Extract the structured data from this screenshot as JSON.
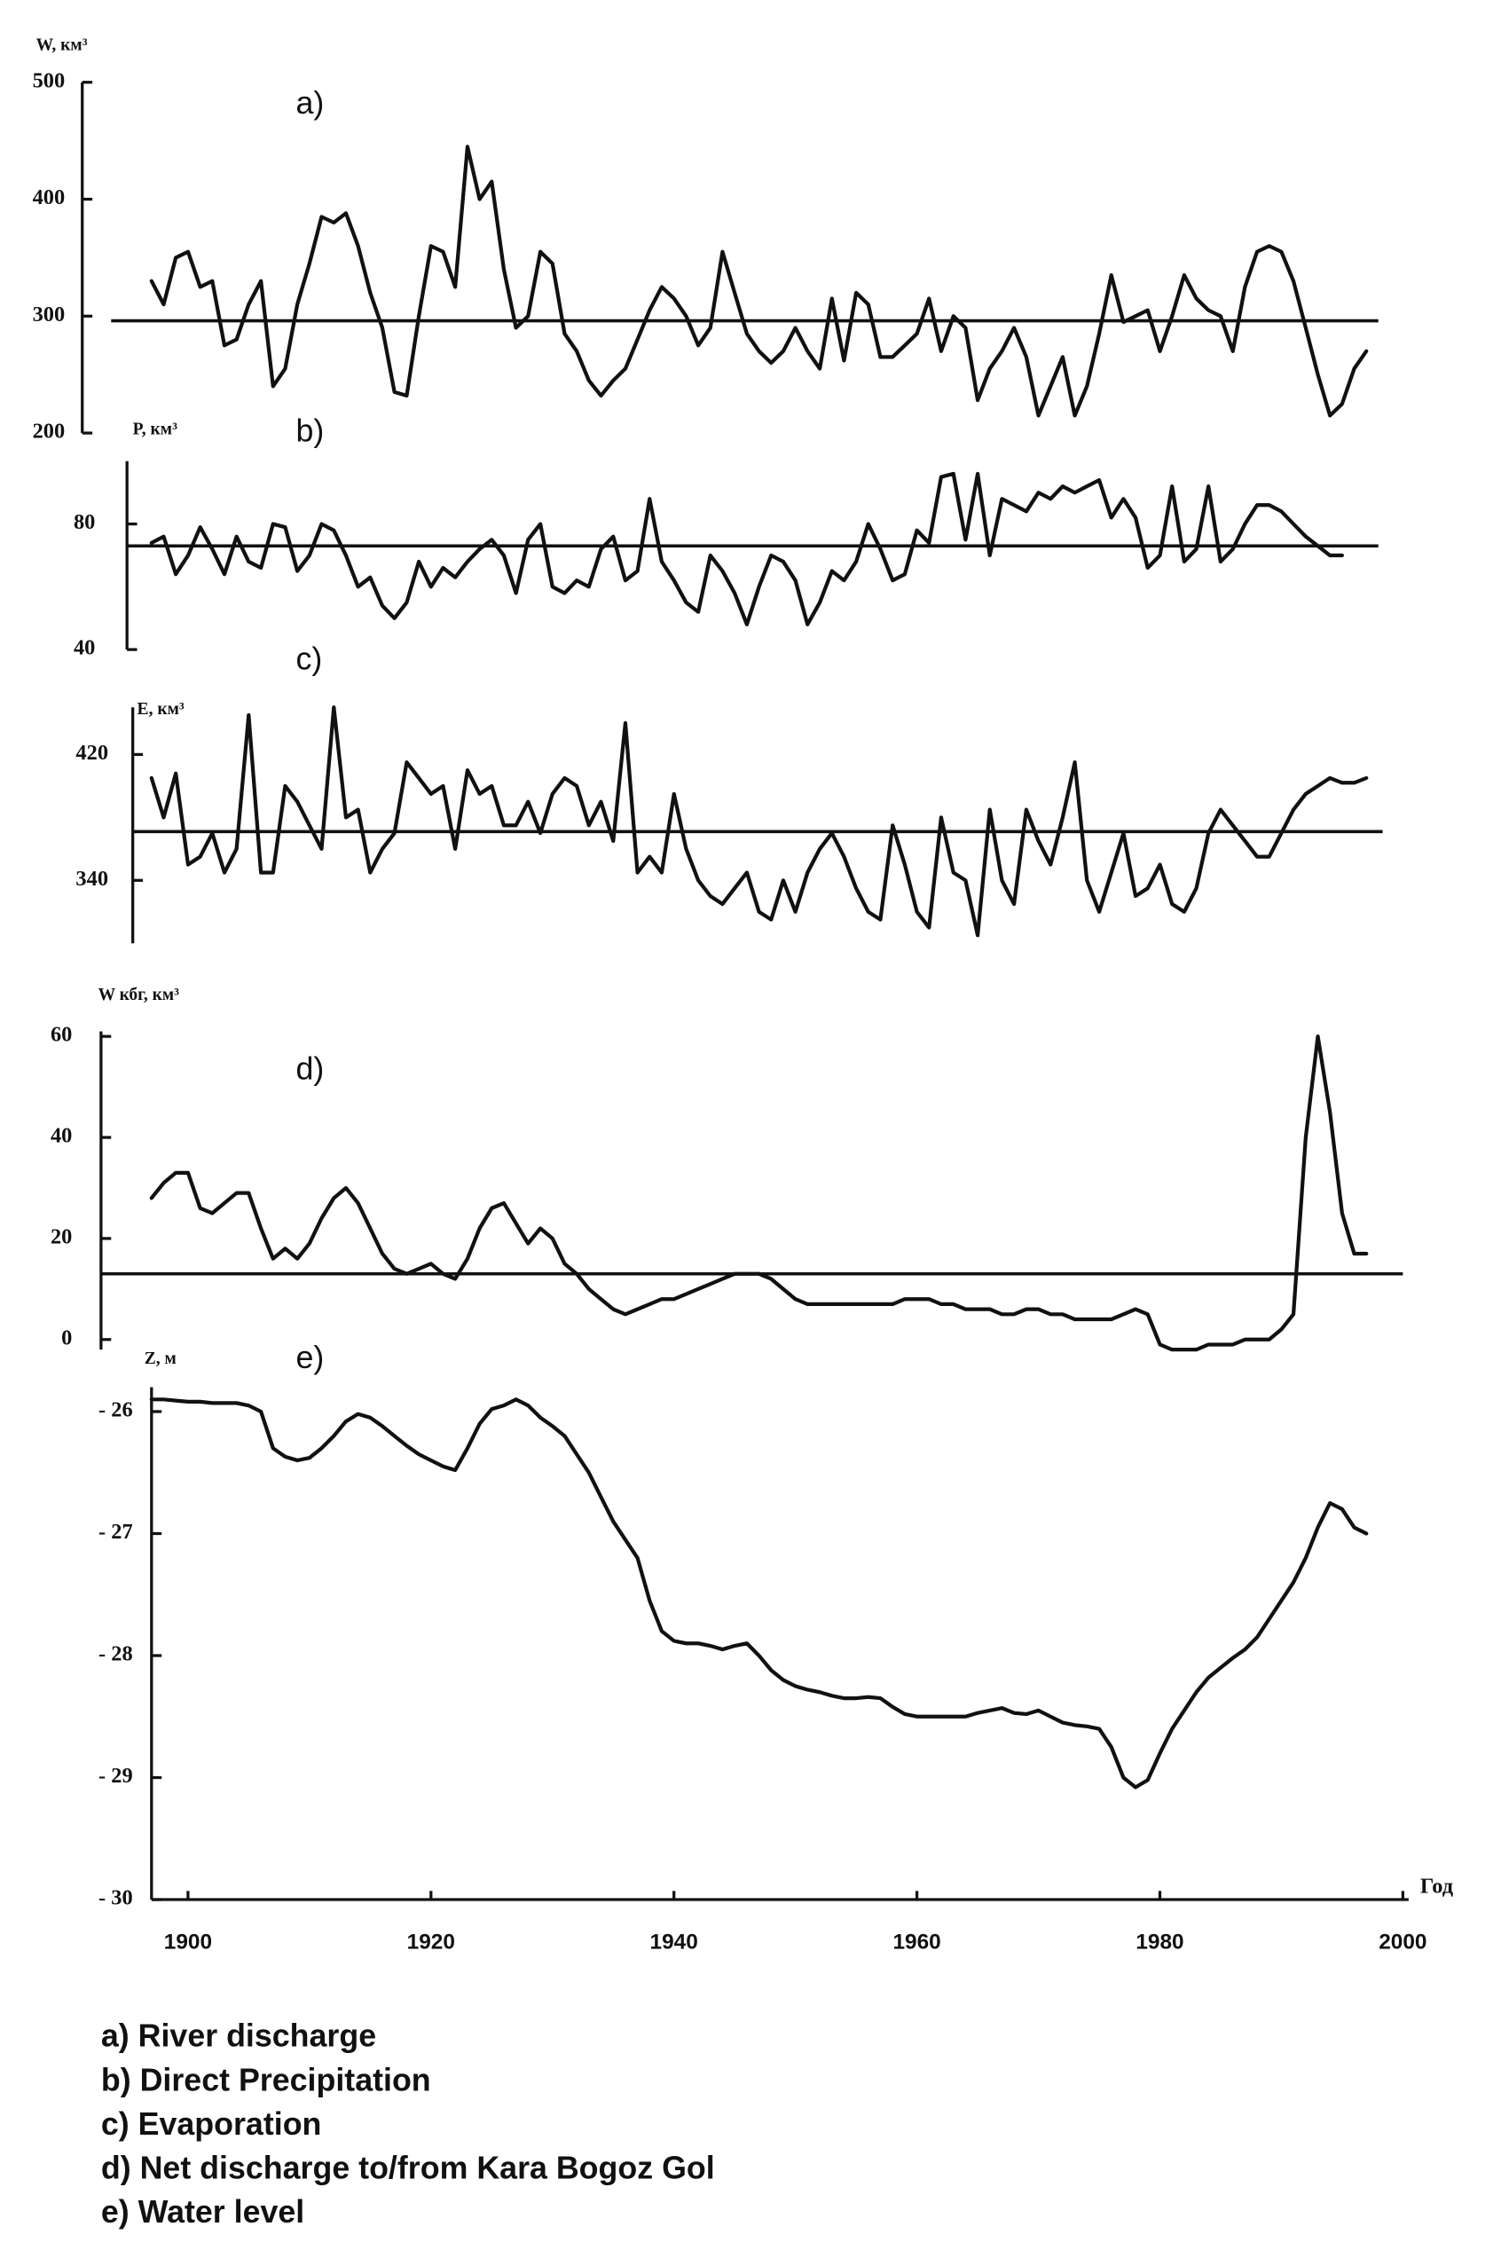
{
  "chart_data": [
    {
      "type": "line",
      "label": "a)",
      "ylabel": "W, км³",
      "xlim": [
        1897,
        2000
      ],
      "ylim": [
        200,
        500
      ],
      "yticks": [
        200,
        300,
        400,
        500
      ],
      "reference_line": 296,
      "color": "#111111",
      "x": [
        1897,
        1898,
        1899,
        1900,
        1901,
        1902,
        1903,
        1904,
        1905,
        1906,
        1907,
        1908,
        1909,
        1910,
        1911,
        1912,
        1913,
        1914,
        1915,
        1916,
        1917,
        1918,
        1919,
        1920,
        1921,
        1922,
        1923,
        1924,
        1925,
        1926,
        1927,
        1928,
        1929,
        1930,
        1931,
        1932,
        1933,
        1934,
        1935,
        1936,
        1937,
        1938,
        1939,
        1940,
        1941,
        1942,
        1943,
        1944,
        1945,
        1946,
        1947,
        1948,
        1949,
        1950,
        1951,
        1952,
        1953,
        1954,
        1955,
        1956,
        1957,
        1958,
        1959,
        1960,
        1961,
        1962,
        1963,
        1964,
        1965,
        1966,
        1967,
        1968,
        1969,
        1970,
        1971,
        1972,
        1973,
        1974,
        1975,
        1976,
        1977,
        1978,
        1979,
        1980,
        1981,
        1982,
        1983,
        1984,
        1985,
        1986,
        1987,
        1988,
        1989,
        1990,
        1991,
        1992,
        1993,
        1994,
        1995,
        1996,
        1997
      ],
      "values": [
        330,
        310,
        350,
        355,
        325,
        330,
        275,
        280,
        310,
        330,
        240,
        255,
        310,
        345,
        385,
        380,
        388,
        360,
        320,
        290,
        235,
        232,
        300,
        360,
        355,
        325,
        445,
        400,
        415,
        340,
        290,
        300,
        355,
        345,
        285,
        270,
        245,
        232,
        245,
        255,
        280,
        305,
        325,
        315,
        300,
        275,
        290,
        355,
        320,
        285,
        270,
        260,
        270,
        290,
        270,
        255,
        315,
        262,
        320,
        310,
        265,
        265,
        275,
        285,
        315,
        270,
        300,
        290,
        228,
        255,
        270,
        290,
        265,
        215,
        240,
        265,
        215,
        240,
        285,
        335,
        295,
        300,
        305,
        270,
        300,
        335,
        315,
        305,
        300,
        270,
        325,
        355,
        360,
        355,
        330,
        290,
        250,
        215,
        225,
        255,
        270
      ]
    },
    {
      "type": "line",
      "label": "b)",
      "ylabel": "P, км³",
      "xlim": [
        1897,
        2000
      ],
      "ylim": [
        40,
        100
      ],
      "yticks": [
        40,
        80
      ],
      "reference_line": 73,
      "color": "#111111",
      "x": [
        1897,
        1898,
        1899,
        1900,
        1901,
        1902,
        1903,
        1904,
        1905,
        1906,
        1907,
        1908,
        1909,
        1910,
        1911,
        1912,
        1913,
        1914,
        1915,
        1916,
        1917,
        1918,
        1919,
        1920,
        1921,
        1922,
        1923,
        1924,
        1925,
        1926,
        1927,
        1928,
        1929,
        1930,
        1931,
        1932,
        1933,
        1934,
        1935,
        1936,
        1937,
        1938,
        1939,
        1940,
        1941,
        1942,
        1943,
        1944,
        1945,
        1946,
        1947,
        1948,
        1949,
        1950,
        1951,
        1952,
        1953,
        1954,
        1955,
        1956,
        1957,
        1958,
        1959,
        1960,
        1961,
        1962,
        1963,
        1964,
        1965,
        1966,
        1967,
        1968,
        1969,
        1970,
        1971,
        1972,
        1973,
        1974,
        1975,
        1976,
        1977,
        1978,
        1979,
        1980,
        1981,
        1982,
        1983,
        1984,
        1985,
        1986,
        1987,
        1988,
        1989,
        1990,
        1991,
        1992,
        1993,
        1994,
        1995
      ],
      "values": [
        74,
        76,
        64,
        70,
        79,
        72,
        64,
        76,
        68,
        66,
        80,
        79,
        65,
        70,
        80,
        78,
        70,
        60,
        63,
        54,
        50,
        55,
        68,
        60,
        66,
        63,
        68,
        72,
        75,
        70,
        58,
        75,
        80,
        60,
        58,
        62,
        60,
        72,
        76,
        62,
        65,
        88,
        68,
        62,
        55,
        52,
        70,
        65,
        58,
        48,
        60,
        70,
        68,
        62,
        48,
        55,
        65,
        62,
        68,
        80,
        72,
        62,
        64,
        78,
        74,
        95,
        96,
        75,
        96,
        70,
        88,
        86,
        84,
        90,
        88,
        92,
        90,
        92,
        94,
        82,
        88,
        82,
        66,
        70,
        92,
        68,
        72,
        92,
        68,
        72,
        80,
        86,
        86,
        84,
        80,
        76,
        73,
        70,
        70
      ]
    },
    {
      "type": "line",
      "label": "c)",
      "ylabel": "E, км³",
      "xlim": [
        1897,
        2000
      ],
      "ylim": [
        300,
        450
      ],
      "yticks": [
        340,
        420
      ],
      "reference_line": 371,
      "color": "#111111",
      "x": [
        1897,
        1898,
        1899,
        1900,
        1901,
        1902,
        1903,
        1904,
        1905,
        1906,
        1907,
        1908,
        1909,
        1910,
        1911,
        1912,
        1913,
        1914,
        1915,
        1916,
        1917,
        1918,
        1919,
        1920,
        1921,
        1922,
        1923,
        1924,
        1925,
        1926,
        1927,
        1928,
        1929,
        1930,
        1931,
        1932,
        1933,
        1934,
        1935,
        1936,
        1937,
        1938,
        1939,
        1940,
        1941,
        1942,
        1943,
        1944,
        1945,
        1946,
        1947,
        1948,
        1949,
        1950,
        1951,
        1952,
        1953,
        1954,
        1955,
        1956,
        1957,
        1958,
        1959,
        1960,
        1961,
        1962,
        1963,
        1964,
        1965,
        1966,
        1967,
        1968,
        1969,
        1970,
        1971,
        1972,
        1973,
        1974,
        1975,
        1976,
        1977,
        1978,
        1979,
        1980,
        1981,
        1982,
        1983,
        1984,
        1985,
        1986,
        1987,
        1988,
        1989,
        1990,
        1991,
        1992,
        1993,
        1994,
        1995,
        1996,
        1997
      ],
      "values": [
        405,
        380,
        408,
        350,
        355,
        370,
        345,
        360,
        445,
        345,
        345,
        400,
        390,
        375,
        360,
        450,
        380,
        385,
        345,
        360,
        370,
        415,
        405,
        395,
        400,
        360,
        410,
        395,
        400,
        375,
        375,
        390,
        370,
        395,
        405,
        400,
        375,
        390,
        365,
        440,
        345,
        355,
        345,
        395,
        360,
        340,
        330,
        325,
        335,
        345,
        320,
        315,
        340,
        320,
        345,
        360,
        370,
        355,
        335,
        320,
        315,
        375,
        350,
        320,
        310,
        380,
        345,
        340,
        305,
        385,
        340,
        325,
        385,
        365,
        350,
        380,
        415,
        340,
        320,
        345,
        370,
        330,
        335,
        350,
        325,
        320,
        335,
        370,
        385,
        375,
        365,
        355,
        355,
        370,
        385,
        395,
        400,
        405,
        402,
        402,
        405
      ]
    },
    {
      "type": "line",
      "label": "d)",
      "ylabel": "W кбг, км³",
      "xlim": [
        1897,
        2000
      ],
      "ylim": [
        -2,
        61
      ],
      "yticks": [
        0,
        20,
        40,
        60
      ],
      "reference_line": 13,
      "color": "#111111",
      "x": [
        1897,
        1898,
        1899,
        1900,
        1901,
        1902,
        1903,
        1904,
        1905,
        1906,
        1907,
        1908,
        1909,
        1910,
        1911,
        1912,
        1913,
        1914,
        1915,
        1916,
        1917,
        1918,
        1919,
        1920,
        1921,
        1922,
        1923,
        1924,
        1925,
        1926,
        1927,
        1928,
        1929,
        1930,
        1931,
        1932,
        1933,
        1934,
        1935,
        1936,
        1937,
        1938,
        1939,
        1940,
        1941,
        1942,
        1943,
        1944,
        1945,
        1946,
        1947,
        1948,
        1949,
        1950,
        1951,
        1952,
        1953,
        1954,
        1955,
        1956,
        1957,
        1958,
        1959,
        1960,
        1961,
        1962,
        1963,
        1964,
        1965,
        1966,
        1967,
        1968,
        1969,
        1970,
        1971,
        1972,
        1973,
        1974,
        1975,
        1976,
        1977,
        1978,
        1979,
        1980,
        1981,
        1982,
        1983,
        1984,
        1985,
        1986,
        1987,
        1988,
        1989,
        1990,
        1991,
        1992,
        1993,
        1994,
        1995,
        1996,
        1997
      ],
      "values": [
        28,
        31,
        33,
        33,
        26,
        25,
        27,
        29,
        29,
        22,
        16,
        18,
        16,
        19,
        24,
        28,
        30,
        27,
        22,
        17,
        14,
        13,
        14,
        15,
        13,
        12,
        16,
        22,
        26,
        27,
        23,
        19,
        22,
        20,
        15,
        13,
        10,
        8,
        6,
        5,
        6,
        7,
        8,
        8,
        9,
        10,
        11,
        12,
        13,
        13,
        13,
        12,
        10,
        8,
        7,
        7,
        7,
        7,
        7,
        7,
        7,
        7,
        8,
        8,
        8,
        7,
        7,
        6,
        6,
        6,
        5,
        5,
        6,
        6,
        5,
        5,
        4,
        4,
        4,
        4,
        5,
        6,
        5,
        -1,
        -2,
        -2,
        -2,
        -1,
        -1,
        -1,
        0,
        0,
        0,
        2,
        5,
        40,
        60,
        45,
        25,
        17,
        17
      ]
    },
    {
      "type": "line",
      "label": "e)",
      "ylabel": "Z, м",
      "xlabel": "Год",
      "xlim": [
        1897,
        2000
      ],
      "xticks": [
        1900,
        1920,
        1940,
        1960,
        1980,
        2000
      ],
      "ylim": [
        -30,
        -25.8
      ],
      "yticks": [
        {
          "value": -30,
          "label": "- 30"
        },
        {
          "value": -29,
          "label": "- 29"
        },
        {
          "value": -28,
          "label": "- 28"
        },
        {
          "value": -27,
          "label": "- 27"
        },
        {
          "value": -26,
          "label": "- 26"
        }
      ],
      "color": "#111111",
      "x": [
        1897,
        1898,
        1899,
        1900,
        1901,
        1902,
        1903,
        1904,
        1905,
        1906,
        1907,
        1908,
        1909,
        1910,
        1911,
        1912,
        1913,
        1914,
        1915,
        1916,
        1917,
        1918,
        1919,
        1920,
        1921,
        1922,
        1923,
        1924,
        1925,
        1926,
        1927,
        1928,
        1929,
        1930,
        1931,
        1932,
        1933,
        1934,
        1935,
        1936,
        1937,
        1938,
        1939,
        1940,
        1941,
        1942,
        1943,
        1944,
        1945,
        1946,
        1947,
        1948,
        1949,
        1950,
        1951,
        1952,
        1953,
        1954,
        1955,
        1956,
        1957,
        1958,
        1959,
        1960,
        1961,
        1962,
        1963,
        1964,
        1965,
        1966,
        1967,
        1968,
        1969,
        1970,
        1971,
        1972,
        1973,
        1974,
        1975,
        1976,
        1977,
        1978,
        1979,
        1980,
        1981,
        1982,
        1983,
        1984,
        1985,
        1986,
        1987,
        1988,
        1989,
        1990,
        1991,
        1992,
        1993,
        1994,
        1995,
        1996,
        1997
      ],
      "values": [
        -25.9,
        -25.9,
        -25.91,
        -25.92,
        -25.92,
        -25.93,
        -25.93,
        -25.93,
        -25.95,
        -26.0,
        -26.3,
        -26.37,
        -26.4,
        -26.38,
        -26.3,
        -26.2,
        -26.08,
        -26.02,
        -26.05,
        -26.12,
        -26.2,
        -26.28,
        -26.35,
        -26.4,
        -26.45,
        -26.48,
        -26.3,
        -26.1,
        -25.98,
        -25.95,
        -25.9,
        -25.95,
        -26.05,
        -26.12,
        -26.2,
        -26.35,
        -26.5,
        -26.7,
        -26.9,
        -27.05,
        -27.2,
        -27.55,
        -27.8,
        -27.88,
        -27.9,
        -27.9,
        -27.92,
        -27.95,
        -27.92,
        -27.9,
        -28.0,
        -28.12,
        -28.2,
        -28.25,
        -28.28,
        -28.3,
        -28.33,
        -28.35,
        -28.35,
        -28.34,
        -28.35,
        -28.42,
        -28.48,
        -28.5,
        -28.5,
        -28.5,
        -28.5,
        -28.5,
        -28.47,
        -28.45,
        -28.43,
        -28.47,
        -28.48,
        -28.45,
        -28.5,
        -28.55,
        -28.57,
        -28.58,
        -28.6,
        -28.75,
        -29.0,
        -29.08,
        -29.02,
        -28.8,
        -28.6,
        -28.45,
        -28.3,
        -28.18,
        -28.1,
        -28.02,
        -27.95,
        -27.85,
        -27.7,
        -27.55,
        -27.4,
        -27.2,
        -26.95,
        -26.75,
        -26.8,
        -26.95,
        -27.0
      ]
    }
  ],
  "captions": [
    "a) River discharge",
    "b) Direct Precipitation",
    "c) Evaporation",
    "d) Net discharge to/from Kara Bogoz Gol",
    "e) Water level"
  ]
}
